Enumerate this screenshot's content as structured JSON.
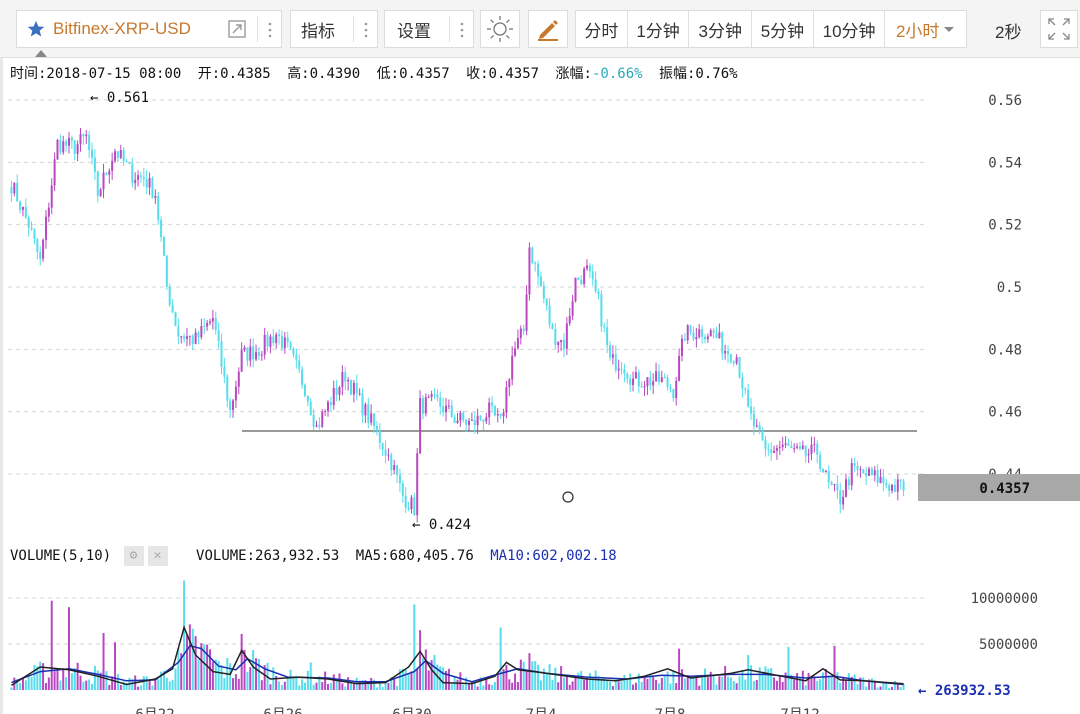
{
  "toolbar": {
    "symbol": "Bitfinex-XRP-USD",
    "indicators_label": "指标",
    "settings_label": "设置",
    "periods": [
      "分时",
      "1分钟",
      "3分钟",
      "5分钟",
      "10分钟",
      "2小时"
    ],
    "active_period": "2小时",
    "refresh_label": "2秒"
  },
  "info_bar": {
    "time": "时间:2018-07-15 08:00",
    "open": "开:0.4385",
    "high": "高:0.4390",
    "low": "低:0.4357",
    "close": "收:0.4357",
    "change_label": "涨幅:",
    "change_value": "-0.66%",
    "amplitude": "振幅:0.76%"
  },
  "volume_info": {
    "title": "VOLUME(5,10)",
    "volume": "VOLUME:263,932.53",
    "ma5": "MA5:680,405.76",
    "ma10": "MA10:602,002.18"
  },
  "colors": {
    "up": "#b848c0",
    "down": "#56dcea",
    "ma5": "#222222",
    "ma10": "#1b2fb0",
    "accent": "#c5792f",
    "last_price_bg": "#a8a8a8"
  },
  "chart_data": [
    {
      "type": "candlestick",
      "ylim": [
        0.415,
        0.568
      ],
      "yticks": [
        "0.56",
        "0.54",
        "0.52",
        "0.5",
        "0.48",
        "0.46",
        "0.44"
      ],
      "xticks": [
        "6月22",
        "6月26",
        "6月30",
        "7月4",
        "7月8",
        "7月12"
      ],
      "high_label": "0.561",
      "low_label": "0.424",
      "last_price": "0.4357",
      "horizontal_line": 0.4538,
      "close_keypoints": [
        [
          0,
          0.533
        ],
        [
          6,
          0.52
        ],
        [
          10,
          0.508
        ],
        [
          16,
          0.546
        ],
        [
          22,
          0.545
        ],
        [
          26,
          0.548
        ],
        [
          30,
          0.53
        ],
        [
          36,
          0.544
        ],
        [
          42,
          0.536
        ],
        [
          46,
          0.535
        ],
        [
          50,
          0.53
        ],
        [
          54,
          0.5
        ],
        [
          58,
          0.485
        ],
        [
          64,
          0.483
        ],
        [
          70,
          0.49
        ],
        [
          76,
          0.46
        ],
        [
          80,
          0.478
        ],
        [
          86,
          0.48
        ],
        [
          92,
          0.485
        ],
        [
          96,
          0.48
        ],
        [
          102,
          0.468
        ],
        [
          106,
          0.455
        ],
        [
          110,
          0.462
        ],
        [
          116,
          0.472
        ],
        [
          120,
          0.465
        ],
        [
          126,
          0.455
        ],
        [
          132,
          0.444
        ],
        [
          136,
          0.433
        ],
        [
          140,
          0.429
        ],
        [
          142,
          0.462
        ],
        [
          148,
          0.463
        ],
        [
          154,
          0.458
        ],
        [
          160,
          0.456
        ],
        [
          166,
          0.46
        ],
        [
          170,
          0.456
        ],
        [
          174,
          0.478
        ],
        [
          178,
          0.486
        ],
        [
          180,
          0.513
        ],
        [
          184,
          0.5
        ],
        [
          188,
          0.485
        ],
        [
          192,
          0.482
        ],
        [
          196,
          0.502
        ],
        [
          200,
          0.505
        ],
        [
          204,
          0.495
        ],
        [
          208,
          0.476
        ],
        [
          212,
          0.476
        ],
        [
          216,
          0.47
        ],
        [
          220,
          0.47
        ],
        [
          226,
          0.47
        ],
        [
          230,
          0.467
        ],
        [
          234,
          0.485
        ],
        [
          240,
          0.486
        ],
        [
          244,
          0.485
        ],
        [
          248,
          0.48
        ],
        [
          252,
          0.478
        ],
        [
          256,
          0.46
        ],
        [
          262,
          0.447
        ],
        [
          268,
          0.449
        ],
        [
          274,
          0.446
        ],
        [
          280,
          0.447
        ],
        [
          284,
          0.436
        ],
        [
          288,
          0.432
        ],
        [
          292,
          0.441
        ],
        [
          296,
          0.44
        ],
        [
          300,
          0.439
        ],
        [
          306,
          0.436
        ],
        [
          310,
          0.4357
        ]
      ]
    },
    {
      "type": "bar+line",
      "ylim": [
        0,
        13000000
      ],
      "yticks": [
        "10000000",
        "5000000"
      ],
      "last_volume_label": "263932.53",
      "spike_volumes": [
        [
          14,
          9700000
        ],
        [
          20,
          9000000
        ],
        [
          32,
          6200000
        ],
        [
          36,
          5200000
        ],
        [
          60,
          11900000
        ],
        [
          66,
          5100000
        ],
        [
          80,
          6100000
        ],
        [
          104,
          3000000
        ],
        [
          140,
          9300000
        ],
        [
          142,
          6500000
        ],
        [
          170,
          6800000
        ],
        [
          180,
          4000000
        ],
        [
          232,
          4500000
        ],
        [
          256,
          3800000
        ],
        [
          270,
          4700000
        ],
        [
          286,
          4800000
        ]
      ],
      "ma5_keypoints": [
        [
          0,
          500000
        ],
        [
          10,
          2500000
        ],
        [
          20,
          2200000
        ],
        [
          30,
          1500000
        ],
        [
          40,
          600000
        ],
        [
          50,
          1200000
        ],
        [
          56,
          2300000
        ],
        [
          60,
          6800000
        ],
        [
          64,
          3800000
        ],
        [
          70,
          2000000
        ],
        [
          76,
          1700000
        ],
        [
          80,
          4300000
        ],
        [
          84,
          2500000
        ],
        [
          90,
          1200000
        ],
        [
          100,
          1400000
        ],
        [
          110,
          1200000
        ],
        [
          120,
          700000
        ],
        [
          130,
          800000
        ],
        [
          138,
          2500000
        ],
        [
          142,
          4200000
        ],
        [
          146,
          2200000
        ],
        [
          150,
          800000
        ],
        [
          160,
          700000
        ],
        [
          168,
          1500000
        ],
        [
          172,
          3000000
        ],
        [
          176,
          2200000
        ],
        [
          184,
          1900000
        ],
        [
          200,
          1200000
        ],
        [
          210,
          1000000
        ],
        [
          220,
          1500000
        ],
        [
          228,
          2300000
        ],
        [
          236,
          1300000
        ],
        [
          250,
          1800000
        ],
        [
          256,
          2200000
        ],
        [
          266,
          1600000
        ],
        [
          276,
          1000000
        ],
        [
          282,
          2300000
        ],
        [
          288,
          1100000
        ],
        [
          296,
          1000000
        ],
        [
          310,
          680000
        ]
      ],
      "ma10_keypoints": [
        [
          0,
          800000
        ],
        [
          10,
          2000000
        ],
        [
          20,
          2300000
        ],
        [
          30,
          1700000
        ],
        [
          40,
          1000000
        ],
        [
          50,
          1100000
        ],
        [
          58,
          3000000
        ],
        [
          62,
          4800000
        ],
        [
          66,
          4500000
        ],
        [
          72,
          2600000
        ],
        [
          78,
          2200000
        ],
        [
          82,
          3400000
        ],
        [
          88,
          2300000
        ],
        [
          96,
          1400000
        ],
        [
          110,
          1300000
        ],
        [
          120,
          900000
        ],
        [
          130,
          900000
        ],
        [
          140,
          2000000
        ],
        [
          144,
          3200000
        ],
        [
          150,
          1800000
        ],
        [
          160,
          900000
        ],
        [
          170,
          1800000
        ],
        [
          176,
          2300000
        ],
        [
          186,
          1800000
        ],
        [
          200,
          1400000
        ],
        [
          214,
          1200000
        ],
        [
          226,
          1600000
        ],
        [
          236,
          1500000
        ],
        [
          250,
          1700000
        ],
        [
          262,
          1700000
        ],
        [
          276,
          1300000
        ],
        [
          286,
          1500000
        ],
        [
          296,
          1000000
        ],
        [
          310,
          600000
        ]
      ]
    }
  ]
}
